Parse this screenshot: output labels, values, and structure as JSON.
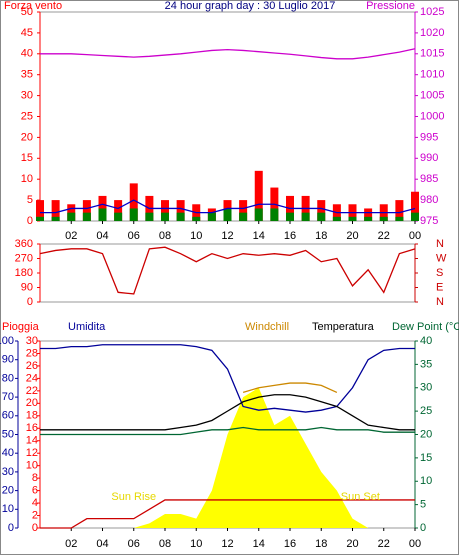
{
  "chart_data": [
    {
      "type": "line",
      "title": "24 hour graph day : 30 Luglio 2017",
      "ylabel": "Forza vento",
      "y2label": "Pressione",
      "x": [
        0,
        1,
        2,
        3,
        4,
        5,
        6,
        7,
        8,
        9,
        10,
        11,
        12,
        13,
        14,
        15,
        16,
        17,
        18,
        19,
        20,
        21,
        22,
        23,
        24
      ],
      "xlim": [
        0,
        24
      ],
      "xticks": [
        {
          "value": 2,
          "label": "02"
        },
        {
          "value": 4,
          "label": "04"
        },
        {
          "value": 6,
          "label": "06"
        },
        {
          "value": 8,
          "label": "08"
        },
        10,
        12,
        14,
        16,
        18,
        20,
        22,
        {
          "value": 24,
          "label": "00"
        }
      ],
      "ylim": [
        0,
        50
      ],
      "yticks": [
        0,
        5,
        10,
        15,
        20,
        25,
        30,
        35,
        40,
        45,
        50
      ],
      "y2lim": [
        975,
        1025
      ],
      "y2ticks": [
        975,
        980,
        985,
        990,
        995,
        1000,
        1005,
        1010,
        1015,
        1020,
        1025
      ],
      "series": [
        {
          "type": "bar",
          "color": "#ff0000",
          "values": [
            5,
            5,
            4,
            5,
            6,
            5,
            9,
            6,
            5,
            5,
            4,
            3,
            5,
            5,
            12,
            8,
            6,
            6,
            5,
            4,
            4,
            3,
            4,
            5,
            7
          ]
        },
        {
          "type": "bar",
          "color": "#008000",
          "values": [
            1,
            1,
            2,
            2,
            3,
            2,
            3,
            2,
            2,
            2,
            1,
            2,
            3,
            2,
            3,
            3,
            2,
            2,
            2,
            1,
            1,
            1,
            1,
            1,
            2
          ]
        },
        {
          "type": "line",
          "color": "#0000cc",
          "values": [
            2,
            2,
            3,
            3,
            4,
            3,
            5,
            3,
            3,
            3,
            2,
            2,
            3,
            3,
            4,
            4,
            3,
            3,
            3,
            2,
            2,
            2,
            2,
            2,
            3
          ]
        },
        {
          "type": "line",
          "color": "#cc00cc",
          "axis": "y2",
          "values": [
            1015,
            1015,
            1015,
            1014.8,
            1014.6,
            1014.4,
            1014.2,
            1014.4,
            1014.7,
            1015,
            1015.4,
            1015.8,
            1016,
            1015.8,
            1015.5,
            1015.2,
            1014.9,
            1014.5,
            1014.1,
            1013.8,
            1013.8,
            1014.2,
            1014.8,
            1015.4,
            1016.2
          ]
        }
      ]
    },
    {
      "type": "line",
      "x": [
        0,
        1,
        2,
        3,
        4,
        5,
        6,
        7,
        8,
        9,
        10,
        11,
        12,
        13,
        14,
        15,
        16,
        17,
        18,
        19,
        20,
        21,
        22,
        23,
        24
      ],
      "xlim": [
        0,
        24
      ],
      "ylim": [
        0,
        360
      ],
      "yticks": [
        0,
        90,
        180,
        270,
        360
      ],
      "y2lim": [
        0,
        360
      ],
      "y2ticks": [
        {
          "value": 360,
          "label": "N"
        },
        {
          "value": 270,
          "label": "W"
        },
        {
          "value": 180,
          "label": "S"
        },
        {
          "value": 90,
          "label": "E"
        },
        {
          "value": 0,
          "label": "N"
        }
      ],
      "series": [
        {
          "type": "line",
          "color": "#cc0000",
          "values": [
            300,
            320,
            330,
            330,
            300,
            60,
            50,
            330,
            340,
            300,
            250,
            300,
            270,
            300,
            290,
            300,
            290,
            320,
            250,
            270,
            100,
            200,
            60,
            300,
            330
          ]
        }
      ]
    },
    {
      "type": "line",
      "ylabel": "Pioggia",
      "x": [
        0,
        1,
        2,
        3,
        4,
        5,
        6,
        7,
        8,
        9,
        10,
        11,
        12,
        13,
        14,
        15,
        16,
        17,
        18,
        19,
        20,
        21,
        22,
        23,
        24
      ],
      "xlim": [
        0,
        24
      ],
      "xticks": [
        {
          "value": 2,
          "label": "02"
        },
        {
          "value": 4,
          "label": "04"
        },
        {
          "value": 6,
          "label": "06"
        },
        {
          "value": 8,
          "label": "08"
        },
        10,
        12,
        14,
        16,
        18,
        20,
        22,
        {
          "value": 24,
          "label": "00"
        }
      ],
      "ylim": [
        0,
        30
      ],
      "yticks": [
        0,
        2,
        4,
        6,
        8,
        10,
        12,
        14,
        16,
        18,
        20,
        22,
        24,
        26,
        28,
        30
      ],
      "y2lim": [
        0,
        40
      ],
      "y2ticks": [
        0,
        5,
        10,
        15,
        20,
        25,
        30,
        35,
        40
      ],
      "y3lim": [
        0,
        100
      ],
      "y3ticks": [
        0,
        10,
        20,
        30,
        40,
        50,
        60,
        70,
        80,
        90,
        100
      ],
      "annotations": [
        {
          "text": "Sun Rise",
          "x": 6
        },
        {
          "text": "Sun Set",
          "x": 20.5
        }
      ],
      "series": [
        {
          "type": "area",
          "color": "#ffff00",
          "axis": "y2",
          "values": [
            0,
            0,
            0,
            0,
            0,
            0,
            0,
            1,
            3,
            3,
            2,
            8,
            20,
            28,
            30,
            22,
            24,
            18,
            12,
            8,
            2,
            0,
            0,
            0,
            0
          ]
        },
        {
          "type": "line",
          "color": "#cc0000",
          "values": [
            0,
            0,
            0,
            1.5,
            1.5,
            1.5,
            1.5,
            3,
            4.5,
            4.5,
            4.5,
            4.5,
            4.5,
            4.5,
            4.5,
            4.5,
            4.5,
            4.5,
            4.5,
            4.5,
            4.5,
            4.5,
            4.5,
            4.5,
            4.5
          ]
        },
        {
          "type": "line",
          "name": "Umidita",
          "color": "#000099",
          "axis": "y3",
          "values": [
            96,
            96,
            97,
            97,
            98,
            98,
            98,
            98,
            98,
            98,
            97,
            95,
            85,
            65,
            63,
            64,
            63,
            62,
            63,
            65,
            75,
            90,
            95,
            96,
            96
          ]
        },
        {
          "type": "line",
          "name": "Dew Point (°C",
          "color": "#006633",
          "axis": "y2",
          "values": [
            20,
            20,
            20,
            20,
            20,
            20,
            20,
            20,
            20,
            20,
            20.5,
            21,
            21,
            21.5,
            21,
            21,
            21,
            21,
            21.5,
            21,
            21,
            21,
            20.5,
            20.5,
            20.5
          ]
        },
        {
          "type": "line",
          "name": "Temperatura",
          "color": "#000000",
          "axis": "y2",
          "values": [
            21,
            21,
            21,
            21,
            21,
            21,
            21,
            21,
            21,
            21.5,
            22,
            23,
            25,
            27,
            28,
            28.5,
            28.5,
            28,
            27,
            26,
            24,
            22,
            21.5,
            21,
            21
          ]
        },
        {
          "type": "line",
          "name": "Windchill",
          "color": "#cc8800",
          "axis": "y2",
          "values": [
            null,
            null,
            null,
            null,
            null,
            null,
            null,
            null,
            null,
            null,
            null,
            null,
            null,
            29,
            30,
            30.5,
            31,
            31,
            30.5,
            29,
            null,
            null,
            null,
            null,
            null
          ]
        }
      ]
    }
  ]
}
